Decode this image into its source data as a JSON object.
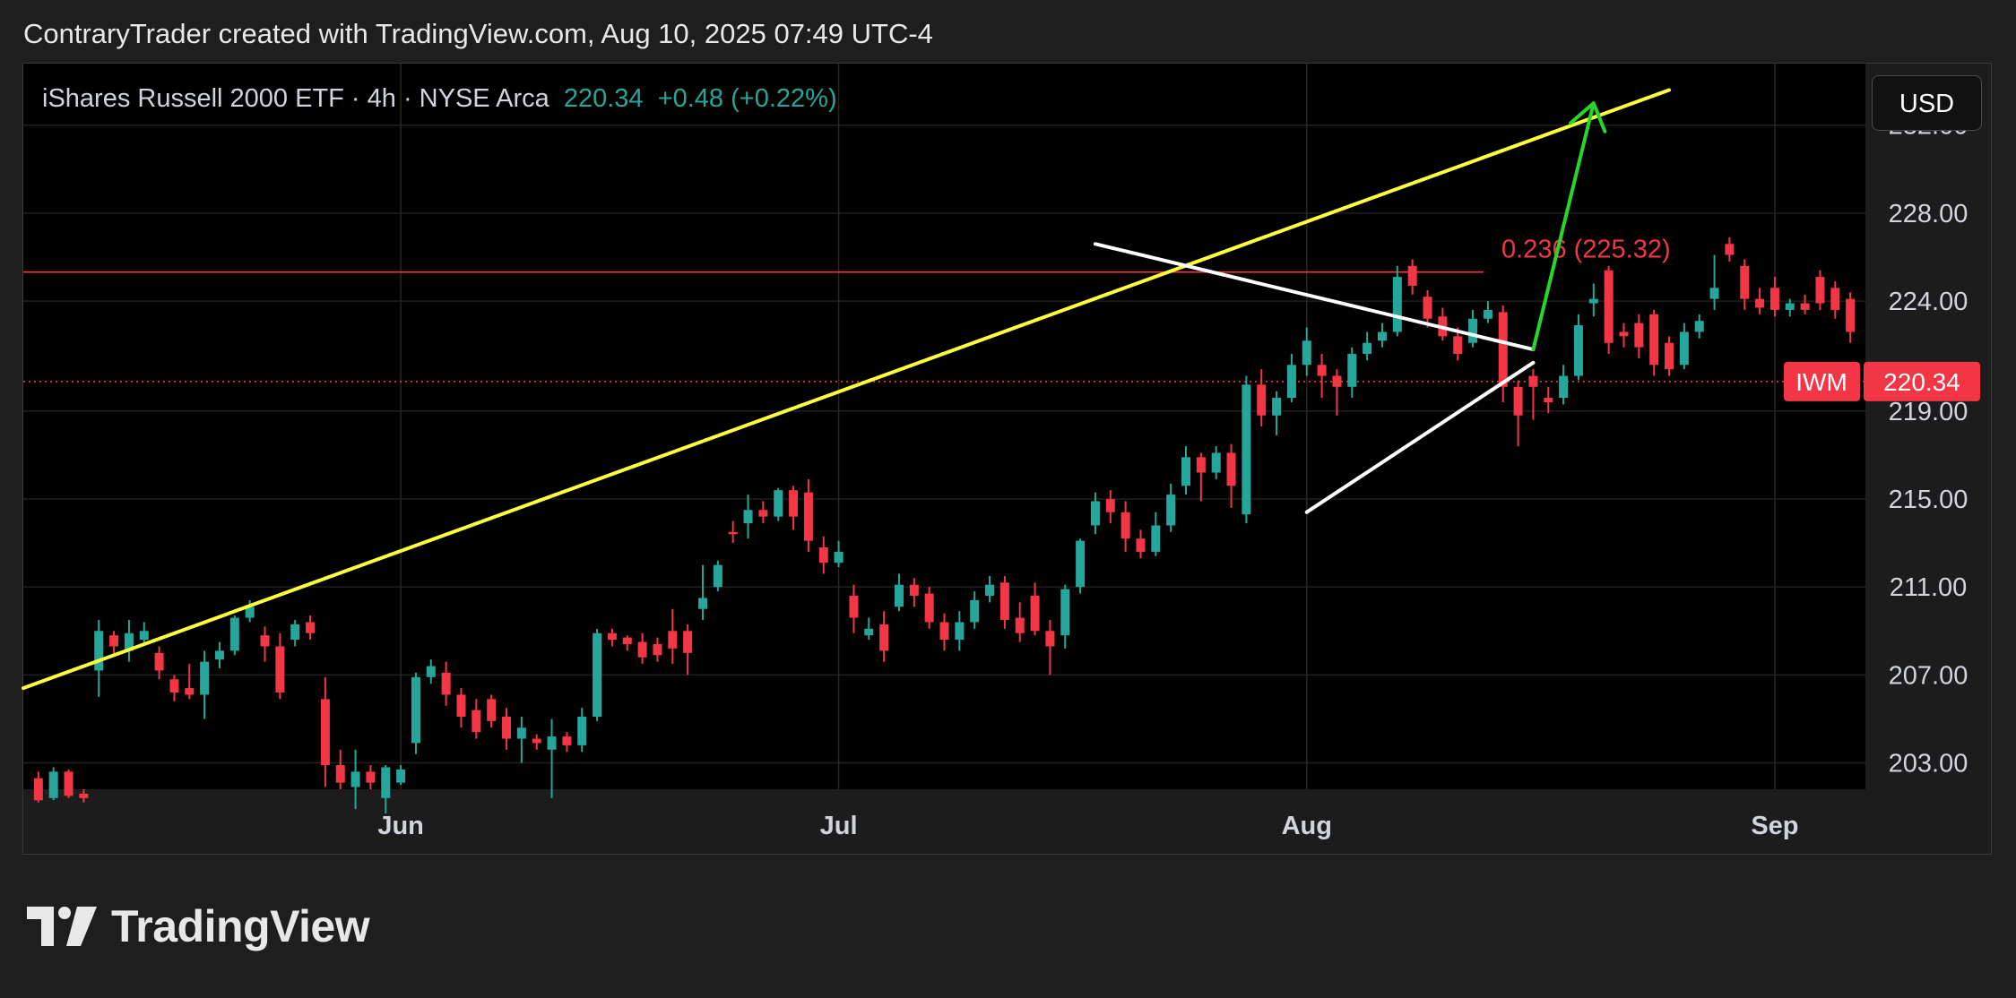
{
  "caption": "ContraryTrader created with TradingView.com, Aug 10, 2025 07:49 UTC-4",
  "legend": {
    "name": "iShares Russell 2000 ETF · 4h · NYSE Arca",
    "price": "220.34",
    "change": "+0.48 (+0.22%)"
  },
  "currency_button": "USD",
  "price_tag": {
    "symbol": "IWM",
    "price": "220.34"
  },
  "fib_label": "0.236 (225.32)",
  "brand": "TradingView",
  "colors": {
    "up": "#26a69a",
    "down": "#f23645",
    "trendline": "#ffff3b",
    "triangle": "#ffffff",
    "arrow": "#27d62a",
    "fib": "#f23645",
    "background": "#000000"
  },
  "chart_data": {
    "type": "candlestick",
    "title": "iShares Russell 2000 ETF · 4h · NYSE Arca",
    "y_ticks": [
      "232.00",
      "228.00",
      "224.00",
      "219.00",
      "215.00",
      "211.00",
      "207.00",
      "203.00"
    ],
    "y_tick_values": [
      232,
      228,
      224,
      219,
      215,
      211,
      207,
      203
    ],
    "ylim": [
      201.8,
      234.8
    ],
    "x_ticks": [
      {
        "label": "Jun",
        "date": "2025-06-02"
      },
      {
        "label": "Jul",
        "date": "2025-07-01"
      },
      {
        "label": "Aug",
        "date": "2025-08-01"
      },
      {
        "label": "Sep",
        "date": "2025-09-01"
      }
    ],
    "x_range": [
      "2025-05-08",
      "2025-09-07"
    ],
    "candles": [
      [
        "2025-05-09",
        202.3,
        201.3,
        202.6,
        201.2
      ],
      [
        "2025-05-10",
        201.4,
        202.6,
        202.8,
        201.3
      ],
      [
        "2025-05-11",
        202.6,
        201.5,
        202.7,
        201.4
      ],
      [
        "2025-05-12",
        201.6,
        201.4,
        201.8,
        201.2
      ],
      [
        "2025-05-13",
        207.2,
        209.0,
        209.5,
        206.0
      ],
      [
        "2025-05-14",
        208.8,
        208.3,
        209.0,
        207.9
      ],
      [
        "2025-05-15",
        208.1,
        208.9,
        209.5,
        207.6
      ],
      [
        "2025-05-16",
        208.6,
        209.0,
        209.4,
        208.4
      ],
      [
        "2025-05-17",
        208.0,
        207.2,
        208.3,
        206.8
      ],
      [
        "2025-05-18",
        206.8,
        206.2,
        207.0,
        205.8
      ],
      [
        "2025-05-19",
        206.4,
        206.1,
        207.5,
        205.9
      ],
      [
        "2025-05-20",
        206.1,
        207.6,
        208.1,
        205.0
      ],
      [
        "2025-05-21",
        207.7,
        208.1,
        208.5,
        207.3
      ],
      [
        "2025-05-22",
        208.1,
        209.6,
        209.7,
        207.9
      ],
      [
        "2025-05-23",
        209.6,
        210.1,
        210.4,
        209.4
      ],
      [
        "2025-05-24",
        208.8,
        208.3,
        209.2,
        207.6
      ],
      [
        "2025-05-25",
        208.3,
        206.2,
        208.9,
        205.9
      ],
      [
        "2025-05-26",
        208.6,
        209.3,
        209.5,
        208.3
      ],
      [
        "2025-05-27",
        209.4,
        208.9,
        209.7,
        208.6
      ],
      [
        "2025-05-28",
        205.9,
        202.9,
        206.9,
        201.9
      ],
      [
        "2025-05-29",
        202.9,
        202.1,
        203.6,
        201.8
      ],
      [
        "2025-05-30",
        201.9,
        202.6,
        203.6,
        200.9
      ],
      [
        "2025-05-31",
        202.6,
        202.1,
        202.9,
        201.8
      ],
      [
        "2025-06-01",
        201.4,
        202.8,
        202.9,
        200.7
      ],
      [
        "2025-06-02",
        202.1,
        202.7,
        202.9,
        202.0
      ],
      [
        "2025-06-03",
        203.9,
        206.9,
        207.1,
        203.4
      ],
      [
        "2025-06-04",
        206.9,
        207.4,
        207.7,
        206.6
      ],
      [
        "2025-06-05",
        207.1,
        206.1,
        207.6,
        205.6
      ],
      [
        "2025-06-06",
        206.1,
        205.1,
        206.4,
        204.6
      ],
      [
        "2025-06-07",
        205.4,
        204.4,
        205.9,
        204.1
      ],
      [
        "2025-06-08",
        205.9,
        204.9,
        206.1,
        204.6
      ],
      [
        "2025-06-09",
        205.1,
        204.1,
        205.5,
        203.6
      ],
      [
        "2025-06-10",
        204.1,
        204.6,
        205.1,
        203.0
      ],
      [
        "2025-06-11",
        204.1,
        203.9,
        204.3,
        203.6
      ],
      [
        "2025-06-12",
        203.6,
        204.2,
        205.0,
        201.4
      ],
      [
        "2025-06-13",
        204.2,
        203.8,
        204.4,
        203.5
      ],
      [
        "2025-06-14",
        203.8,
        205.1,
        205.5,
        203.5
      ],
      [
        "2025-06-15",
        205.1,
        208.9,
        209.1,
        204.9
      ],
      [
        "2025-06-16",
        208.9,
        208.6,
        209.1,
        208.3
      ],
      [
        "2025-06-17",
        208.7,
        208.4,
        208.8,
        208.1
      ],
      [
        "2025-06-18",
        208.5,
        207.8,
        208.9,
        207.5
      ],
      [
        "2025-06-19",
        208.4,
        207.9,
        208.7,
        207.6
      ],
      [
        "2025-06-20",
        209.0,
        208.2,
        210.0,
        207.5
      ],
      [
        "2025-06-21",
        209.0,
        208.0,
        209.3,
        207.0
      ],
      [
        "2025-06-22",
        210.0,
        210.5,
        212.0,
        209.5
      ],
      [
        "2025-06-23",
        211.0,
        212.0,
        212.2,
        210.8
      ],
      [
        "2025-06-24",
        213.5,
        213.4,
        214.0,
        213.0
      ],
      [
        "2025-06-25",
        213.9,
        214.5,
        215.2,
        213.2
      ],
      [
        "2025-06-26",
        214.5,
        214.2,
        214.9,
        213.9
      ],
      [
        "2025-06-27",
        214.2,
        215.4,
        215.5,
        214.0
      ],
      [
        "2025-06-28",
        215.4,
        214.2,
        215.6,
        213.6
      ],
      [
        "2025-06-29",
        215.3,
        213.1,
        215.9,
        212.6
      ],
      [
        "2025-06-30",
        212.8,
        212.1,
        213.3,
        211.6
      ],
      [
        "2025-07-01",
        212.1,
        212.6,
        213.1,
        211.9
      ],
      [
        "2025-07-02",
        210.6,
        209.6,
        211.1,
        208.9
      ],
      [
        "2025-07-03",
        208.8,
        209.1,
        209.6,
        208.6
      ],
      [
        "2025-07-04",
        209.3,
        208.1,
        209.9,
        207.6
      ],
      [
        "2025-07-05",
        210.1,
        211.1,
        211.6,
        209.9
      ],
      [
        "2025-07-06",
        211.1,
        210.6,
        211.4,
        210.1
      ],
      [
        "2025-07-07",
        210.7,
        209.4,
        211.0,
        209.1
      ],
      [
        "2025-07-08",
        209.4,
        208.6,
        209.8,
        208.1
      ],
      [
        "2025-07-09",
        208.6,
        209.4,
        209.9,
        208.1
      ],
      [
        "2025-07-10",
        209.4,
        210.4,
        210.8,
        209.1
      ],
      [
        "2025-07-11",
        210.6,
        211.1,
        211.5,
        210.3
      ],
      [
        "2025-07-12",
        211.2,
        209.5,
        211.5,
        209.1
      ],
      [
        "2025-07-13",
        209.6,
        208.9,
        210.3,
        208.5
      ],
      [
        "2025-07-14",
        210.6,
        209.0,
        211.2,
        208.8
      ],
      [
        "2025-07-15",
        209.0,
        208.3,
        209.5,
        207.0
      ],
      [
        "2025-07-16",
        208.8,
        210.9,
        211.1,
        208.2
      ],
      [
        "2025-07-17",
        211.0,
        213.1,
        213.2,
        210.7
      ],
      [
        "2025-07-18",
        213.8,
        214.9,
        215.3,
        213.4
      ],
      [
        "2025-07-19",
        215.0,
        214.4,
        215.4,
        213.9
      ],
      [
        "2025-07-20",
        214.4,
        213.2,
        214.9,
        212.6
      ],
      [
        "2025-07-21",
        213.2,
        212.6,
        213.6,
        212.3
      ],
      [
        "2025-07-22",
        212.6,
        213.8,
        214.4,
        212.4
      ],
      [
        "2025-07-23",
        213.8,
        215.2,
        215.7,
        213.5
      ],
      [
        "2025-07-24",
        215.6,
        216.9,
        217.4,
        215.2
      ],
      [
        "2025-07-25",
        216.9,
        216.2,
        217.1,
        214.9
      ],
      [
        "2025-07-26",
        216.2,
        217.1,
        217.4,
        215.9
      ],
      [
        "2025-07-27",
        217.1,
        215.6,
        217.5,
        214.6
      ],
      [
        "2025-07-28",
        214.3,
        220.2,
        220.6,
        213.9
      ],
      [
        "2025-07-29",
        220.2,
        218.8,
        220.9,
        218.3
      ],
      [
        "2025-07-30",
        218.8,
        219.6,
        219.9,
        217.9
      ],
      [
        "2025-07-31",
        219.6,
        221.1,
        221.6,
        219.4
      ],
      [
        "2025-08-01",
        221.1,
        222.2,
        222.8,
        220.6
      ],
      [
        "2025-08-02",
        221.1,
        220.6,
        221.6,
        219.6
      ],
      [
        "2025-08-03",
        220.6,
        220.1,
        220.9,
        218.8
      ],
      [
        "2025-08-04",
        220.1,
        221.6,
        221.9,
        219.6
      ],
      [
        "2025-08-05",
        221.6,
        222.1,
        222.6,
        221.3
      ],
      [
        "2025-08-06",
        222.2,
        222.6,
        223.0,
        221.9
      ],
      [
        "2025-08-07",
        222.6,
        225.1,
        225.6,
        222.4
      ],
      [
        "2025-08-08",
        225.6,
        224.7,
        225.9,
        224.3
      ],
      [
        "2025-08-09",
        224.2,
        223.2,
        224.5,
        222.8
      ],
      [
        "2025-08-10",
        223.3,
        222.4,
        223.7,
        222.2
      ],
      [
        "2025-08-11",
        222.4,
        221.6,
        222.8,
        221.3
      ],
      [
        "2025-08-12",
        222.1,
        223.2,
        223.6,
        221.9
      ],
      [
        "2025-08-13",
        223.2,
        223.6,
        224.0,
        223.0
      ],
      [
        "2025-08-14",
        223.5,
        220.1,
        223.8,
        219.4
      ],
      [
        "2025-08-15",
        220.1,
        218.8,
        220.4,
        217.4
      ],
      [
        "2025-08-16",
        220.6,
        220.1,
        220.9,
        218.6
      ],
      [
        "2025-08-17",
        219.6,
        219.4,
        220.1,
        218.9
      ],
      [
        "2025-08-18",
        219.6,
        220.6,
        221.1,
        219.3
      ],
      [
        "2025-08-19",
        220.6,
        222.9,
        223.4,
        220.4
      ],
      [
        "2025-08-20",
        223.9,
        224.1,
        224.8,
        223.3
      ],
      [
        "2025-08-21",
        225.4,
        222.1,
        225.6,
        221.6
      ],
      [
        "2025-08-22",
        222.6,
        222.4,
        223.0,
        221.9
      ],
      [
        "2025-08-23",
        223.0,
        221.9,
        223.4,
        221.4
      ],
      [
        "2025-08-24",
        223.4,
        221.1,
        223.6,
        220.6
      ],
      [
        "2025-08-25",
        222.1,
        220.9,
        222.4,
        220.6
      ],
      [
        "2025-08-26",
        221.1,
        222.6,
        223.0,
        220.9
      ],
      [
        "2025-08-27",
        222.6,
        223.1,
        223.4,
        222.3
      ],
      [
        "2025-08-28",
        224.1,
        224.6,
        226.1,
        223.6
      ],
      [
        "2025-08-29",
        226.6,
        226.1,
        226.9,
        225.8
      ],
      [
        "2025-08-30",
        225.6,
        224.1,
        225.9,
        223.6
      ],
      [
        "2025-08-31",
        224.1,
        223.7,
        224.6,
        223.4
      ],
      [
        "2025-09-01",
        224.6,
        223.6,
        225.1,
        223.3
      ],
      [
        "2025-09-02",
        223.6,
        223.9,
        224.1,
        223.3
      ],
      [
        "2025-09-03",
        223.9,
        223.6,
        224.3,
        223.4
      ],
      [
        "2025-09-04",
        225.1,
        223.9,
        225.4,
        223.6
      ],
      [
        "2025-09-05",
        224.6,
        223.6,
        224.9,
        223.2
      ],
      [
        "2025-09-06",
        224.1,
        222.6,
        224.4,
        222.1
      ]
    ],
    "horizontal_lines": [
      {
        "name": "fib 0.236",
        "value": 225.32,
        "style": "solid"
      },
      {
        "name": "last price",
        "value": 220.34,
        "style": "dotted"
      }
    ],
    "drawings": [
      {
        "kind": "trendline",
        "color": "yellow",
        "points": [
          [
            "2025-05-08",
            206.4
          ],
          [
            "2025-08-25",
            233.6
          ]
        ]
      },
      {
        "kind": "triangle-top",
        "color": "white",
        "points": [
          [
            "2025-07-18",
            226.6
          ],
          [
            "2025-08-16",
            221.8
          ]
        ]
      },
      {
        "kind": "triangle-bottom",
        "color": "white",
        "points": [
          [
            "2025-08-01",
            214.4
          ],
          [
            "2025-08-16",
            221.2
          ]
        ]
      },
      {
        "kind": "arrow",
        "color": "green",
        "points": [
          [
            "2025-08-16",
            221.8
          ],
          [
            "2025-08-20",
            233.0
          ]
        ]
      }
    ],
    "grid": true,
    "legend_position": "top-left"
  }
}
